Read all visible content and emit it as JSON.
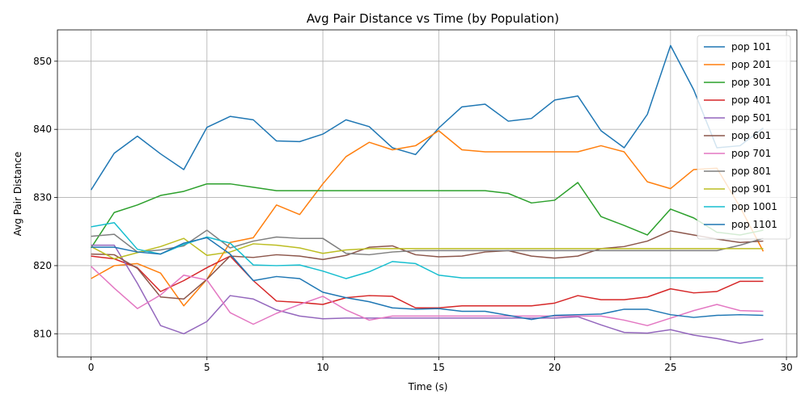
{
  "chart_data": {
    "type": "line",
    "title": "Avg Pair Distance vs Time (by Population)",
    "xlabel": "Time (s)",
    "ylabel": "Avg Pair Distance",
    "xlim": [
      -1.45,
      30.45
    ],
    "ylim": [
      806.6,
      854.6
    ],
    "xticks": [
      0,
      5,
      10,
      15,
      20,
      25,
      30
    ],
    "yticks": [
      810,
      820,
      830,
      840,
      850
    ],
    "grid": true,
    "legend_position": "top-right",
    "x": [
      0,
      1,
      2,
      3,
      4,
      5,
      6,
      7,
      8,
      9,
      10,
      11,
      12,
      13,
      14,
      15,
      16,
      17,
      18,
      19,
      20,
      21,
      22,
      23,
      24,
      25,
      26,
      27,
      28,
      29
    ],
    "series": [
      {
        "name": "pop 101",
        "color": "#1f77b4",
        "values": [
          831.1,
          836.5,
          839.0,
          836.4,
          834.1,
          840.3,
          841.9,
          841.4,
          838.3,
          838.2,
          839.3,
          841.4,
          840.4,
          837.3,
          836.3,
          840.2,
          843.3,
          843.7,
          841.2,
          841.6,
          844.3,
          844.9,
          839.8,
          837.3,
          842.2,
          852.3,
          845.8,
          837.3,
          837.6,
          840.2
        ]
      },
      {
        "name": "pop 201",
        "color": "#ff7f0e",
        "values": [
          818.1,
          820.0,
          820.3,
          818.9,
          814.1,
          818.0,
          823.4,
          824.1,
          828.9,
          827.5,
          832.0,
          836.0,
          838.1,
          837.0,
          837.6,
          839.8,
          837.0,
          836.7,
          836.7,
          836.7,
          836.7,
          836.7,
          837.6,
          836.7,
          832.3,
          831.3,
          834.1,
          834.3,
          828.6,
          822.1
        ]
      },
      {
        "name": "pop 301",
        "color": "#2ca02c",
        "values": [
          822.6,
          827.8,
          828.9,
          830.3,
          830.9,
          832.0,
          832.0,
          831.5,
          831.0,
          831.0,
          831.0,
          831.0,
          831.0,
          831.0,
          831.0,
          831.0,
          831.0,
          831.0,
          830.6,
          829.2,
          829.6,
          832.2,
          827.2,
          825.9,
          824.5,
          828.3,
          827.0,
          824.9,
          824.5,
          825.2
        ]
      },
      {
        "name": "pop 401",
        "color": "#d62728",
        "values": [
          821.4,
          821.0,
          819.7,
          816.2,
          817.8,
          819.7,
          821.4,
          817.8,
          814.8,
          814.6,
          814.3,
          815.3,
          815.6,
          815.5,
          813.8,
          813.8,
          814.1,
          814.1,
          814.1,
          814.1,
          814.5,
          815.6,
          815.0,
          815.0,
          815.4,
          816.6,
          816.0,
          816.2,
          817.7,
          817.7
        ]
      },
      {
        "name": "pop 501",
        "color": "#9467bd",
        "values": [
          823.0,
          823.0,
          817.4,
          811.2,
          810.0,
          811.8,
          815.6,
          815.1,
          813.5,
          812.6,
          812.2,
          812.3,
          812.3,
          812.3,
          812.3,
          812.3,
          812.3,
          812.3,
          812.3,
          812.3,
          812.3,
          812.5,
          811.3,
          810.2,
          810.1,
          810.6,
          809.8,
          809.3,
          808.6,
          809.2
        ]
      },
      {
        "name": "pop 601",
        "color": "#8c564b",
        "values": [
          821.7,
          821.6,
          819.6,
          815.4,
          815.1,
          818.0,
          821.4,
          821.2,
          821.6,
          821.4,
          820.9,
          821.5,
          822.7,
          822.9,
          821.6,
          821.3,
          821.4,
          822.0,
          822.2,
          821.4,
          821.1,
          821.4,
          822.5,
          822.8,
          823.6,
          825.1,
          824.5,
          823.9,
          823.4,
          823.6
        ]
      },
      {
        "name": "pop 701",
        "color": "#e377c2",
        "values": [
          819.9,
          816.7,
          813.7,
          815.7,
          818.6,
          817.9,
          813.1,
          811.4,
          813.0,
          814.3,
          815.5,
          813.5,
          812.0,
          812.6,
          812.6,
          812.6,
          812.6,
          812.6,
          812.6,
          812.6,
          812.6,
          812.6,
          812.6,
          812.0,
          811.2,
          812.3,
          813.4,
          814.3,
          813.4,
          813.3
        ]
      },
      {
        "name": "pop 801",
        "color": "#7f7f7f",
        "values": [
          824.3,
          824.6,
          822.0,
          822.3,
          822.9,
          825.2,
          822.6,
          823.6,
          824.2,
          824.0,
          824.0,
          821.8,
          821.6,
          822.0,
          822.2,
          822.2,
          822.2,
          822.2,
          822.2,
          822.2,
          822.2,
          822.2,
          822.2,
          822.2,
          822.2,
          822.2,
          822.2,
          822.2,
          823.0,
          824.0
        ]
      },
      {
        "name": "pop 901",
        "color": "#bcbd22",
        "values": [
          822.8,
          821.0,
          821.9,
          822.8,
          824.0,
          821.5,
          822.0,
          823.2,
          823.0,
          822.6,
          821.8,
          822.3,
          822.5,
          822.5,
          822.5,
          822.5,
          822.5,
          822.5,
          822.5,
          822.5,
          822.5,
          822.5,
          822.5,
          822.5,
          822.5,
          822.5,
          822.5,
          822.5,
          822.5,
          822.5
        ]
      },
      {
        "name": "pop 1001",
        "color": "#17becf",
        "values": [
          825.7,
          826.3,
          822.4,
          821.7,
          823.1,
          824.2,
          823.3,
          820.1,
          820.0,
          820.1,
          819.2,
          818.1,
          819.1,
          820.6,
          820.3,
          818.6,
          818.2,
          818.2,
          818.2,
          818.2,
          818.2,
          818.2,
          818.2,
          818.2,
          818.2,
          818.2,
          818.2,
          818.2,
          818.2,
          818.2
        ]
      },
      {
        "name": "pop 1101",
        "color": "#1f77b4",
        "values": [
          822.7,
          822.7,
          822.0,
          821.7,
          823.3,
          824.1,
          821.7,
          817.8,
          818.4,
          818.1,
          816.1,
          815.3,
          814.7,
          813.8,
          813.6,
          813.7,
          813.3,
          813.3,
          812.7,
          812.1,
          812.7,
          812.8,
          812.9,
          813.6,
          813.6,
          812.8,
          812.4,
          812.7,
          812.8,
          812.7
        ]
      }
    ]
  }
}
